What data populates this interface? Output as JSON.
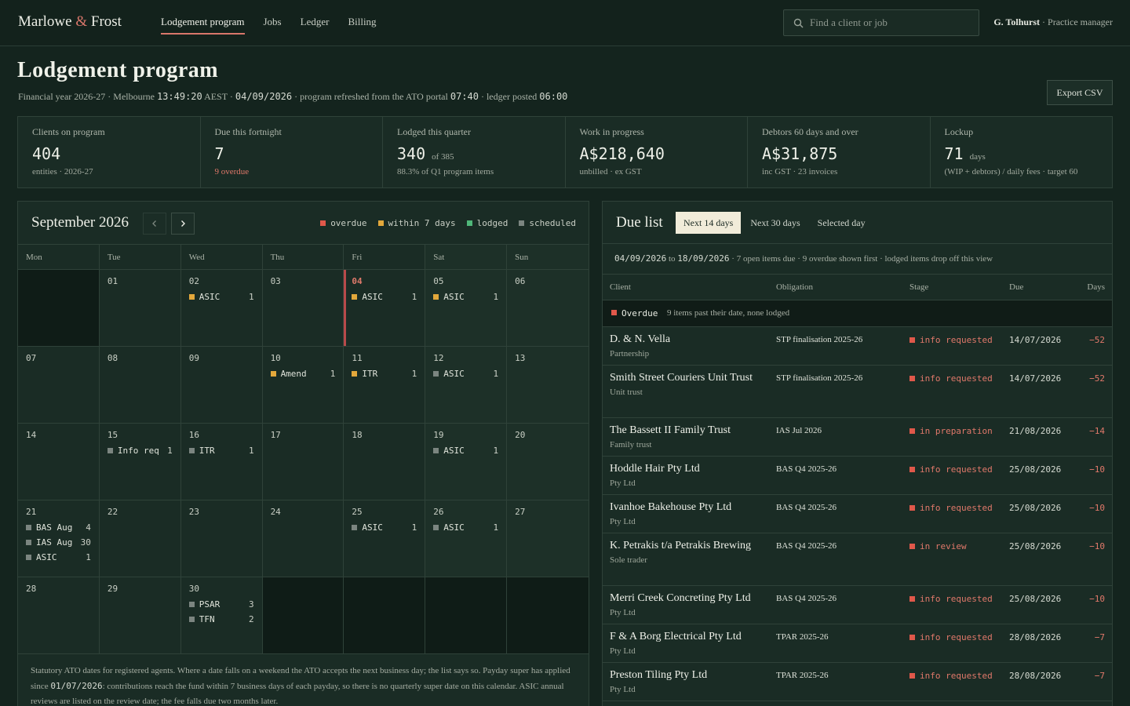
{
  "brand": {
    "name_a": "Marlowe",
    "amp": "&",
    "name_b": "Frost"
  },
  "nav": [
    {
      "label": "Lodgement program",
      "active": true
    },
    {
      "label": "Jobs"
    },
    {
      "label": "Ledger"
    },
    {
      "label": "Billing"
    }
  ],
  "search": {
    "placeholder": "Find a client or job",
    "icon": "search-icon"
  },
  "user": {
    "name": "G. Tolhurst",
    "role": "· Practice manager"
  },
  "page": {
    "title": "Lodgement program",
    "sub_a": "Financial year 2026-27 · Melbourne",
    "time": "13:49:20",
    "sub_b": "AEST ·",
    "date": "04/09/2026",
    "sub_c": "· program refreshed from the ATO portal",
    "refresh_time": "07:40",
    "sub_d": "· ledger posted",
    "ledger_time": "06:00"
  },
  "export_label": "Export CSV",
  "kpis": [
    {
      "label": "Clients on program",
      "value": "404",
      "unit": "",
      "note": "entities · 2026-27",
      "alert": false
    },
    {
      "label": "Due this fortnight",
      "value": "7",
      "unit": "",
      "note": "9 overdue",
      "alert": true
    },
    {
      "label": "Lodged this quarter",
      "value": "340",
      "unit": "of 385",
      "note": "88.3% of Q1 program items",
      "alert": false
    },
    {
      "label": "Work in progress",
      "value": "A$218,640",
      "unit": "",
      "note": "unbilled · ex GST",
      "alert": false
    },
    {
      "label": "Debtors 60 days and over",
      "value": "A$31,875",
      "unit": "",
      "note": "inc GST · 23 invoices",
      "alert": false
    },
    {
      "label": "Lockup",
      "value": "71",
      "unit": "days",
      "note": "(WIP + debtors) / daily fees · target 60",
      "alert": false
    }
  ],
  "colors": {
    "overdue": "#e0584a",
    "within": "#e3a83b",
    "lodged": "#4fb779",
    "scheduled": "#7b8580"
  },
  "calendar": {
    "month": "September 2026",
    "prev_icon": "chevron-left-icon",
    "next_icon": "chevron-right-icon",
    "legend": [
      {
        "key": "overdue",
        "label": "overdue"
      },
      {
        "key": "within",
        "label": "within 7 days"
      },
      {
        "key": "lodged",
        "label": "lodged"
      },
      {
        "key": "scheduled",
        "label": "scheduled"
      }
    ],
    "dow": [
      "Mon",
      "Tue",
      "Wed",
      "Thu",
      "Fri",
      "Sat",
      "Sun"
    ],
    "weeks": [
      [
        {
          "empty": true
        },
        {
          "day": "01",
          "events": []
        },
        {
          "day": "02",
          "events": [
            {
              "label": "ASIC",
              "count": "1",
              "status": "within"
            }
          ]
        },
        {
          "day": "03",
          "events": []
        },
        {
          "day": "04",
          "today": true,
          "events": [
            {
              "label": "ASIC",
              "count": "1",
              "status": "within"
            }
          ]
        },
        {
          "day": "05",
          "events": [
            {
              "label": "ASIC",
              "count": "1",
              "status": "within"
            }
          ]
        },
        {
          "day": "06",
          "events": []
        }
      ],
      [
        {
          "day": "07",
          "events": []
        },
        {
          "day": "08",
          "events": []
        },
        {
          "day": "09",
          "events": []
        },
        {
          "day": "10",
          "events": [
            {
              "label": "Amend",
              "count": "1",
              "status": "within"
            }
          ]
        },
        {
          "day": "11",
          "events": [
            {
              "label": "ITR",
              "count": "1",
              "status": "within"
            }
          ]
        },
        {
          "day": "12",
          "events": [
            {
              "label": "ASIC",
              "count": "1",
              "status": "scheduled"
            }
          ]
        },
        {
          "day": "13",
          "events": []
        }
      ],
      [
        {
          "day": "14",
          "events": []
        },
        {
          "day": "15",
          "events": [
            {
              "label": "Info req",
              "count": "1",
              "status": "scheduled"
            }
          ]
        },
        {
          "day": "16",
          "events": [
            {
              "label": "ITR",
              "count": "1",
              "status": "scheduled"
            }
          ]
        },
        {
          "day": "17",
          "events": []
        },
        {
          "day": "18",
          "events": []
        },
        {
          "day": "19",
          "events": [
            {
              "label": "ASIC",
              "count": "1",
              "status": "scheduled"
            }
          ]
        },
        {
          "day": "20",
          "events": []
        }
      ],
      [
        {
          "day": "21",
          "events": [
            {
              "label": "BAS Aug",
              "count": "4",
              "status": "scheduled"
            },
            {
              "label": "IAS Aug",
              "count": "30",
              "status": "scheduled"
            },
            {
              "label": "ASIC",
              "count": "1",
              "status": "scheduled"
            }
          ]
        },
        {
          "day": "22",
          "events": []
        },
        {
          "day": "23",
          "events": []
        },
        {
          "day": "24",
          "events": []
        },
        {
          "day": "25",
          "events": [
            {
              "label": "ASIC",
              "count": "1",
              "status": "scheduled"
            }
          ]
        },
        {
          "day": "26",
          "events": [
            {
              "label": "ASIC",
              "count": "1",
              "status": "scheduled"
            }
          ]
        },
        {
          "day": "27",
          "events": []
        }
      ],
      [
        {
          "day": "28",
          "events": []
        },
        {
          "day": "29",
          "events": []
        },
        {
          "day": "30",
          "events": [
            {
              "label": "PSAR",
              "count": "3",
              "status": "scheduled"
            },
            {
              "label": "TFN",
              "count": "2",
              "status": "scheduled"
            }
          ]
        },
        {
          "empty": true
        },
        {
          "empty": true
        },
        {
          "empty": true
        },
        {
          "empty": true
        }
      ]
    ],
    "foot_a": "Statutory ATO dates for registered agents. Where a date falls on a weekend the ATO accepts the next business day; the list says so. Payday super has applied since",
    "foot_date": "01/07/2026",
    "foot_b": ": contributions reach the fund within 7 business days of each payday, so there is no quarterly super date on this calendar. ASIC annual reviews are listed on the review date; the fee falls due two months later."
  },
  "due": {
    "title": "Due list",
    "tabs": [
      {
        "label": "Next 14 days",
        "active": true
      },
      {
        "label": "Next 30 days"
      },
      {
        "label": "Selected day"
      }
    ],
    "range_from": "04/09/2026",
    "range_to_word": "to",
    "range_to": "18/09/2026",
    "range_note": "· 7 open items due · 9 overdue shown first · lodged items drop off this view",
    "cols": {
      "client": "Client",
      "obligation": "Obligation",
      "stage": "Stage",
      "due": "Due",
      "days": "Days"
    },
    "group": {
      "name": "Overdue",
      "note": "9 items past their date, none lodged"
    },
    "rows": [
      {
        "client": "D. & N. Vella",
        "type": "Partnership",
        "obligation": "STP finalisation 2025-26",
        "stage": "info requested",
        "due": "14/07/2026",
        "days": "−52"
      },
      {
        "client": "Smith Street Couriers Unit Trust",
        "type": "Unit trust",
        "obligation": "STP finalisation 2025-26",
        "stage": "info requested",
        "due": "14/07/2026",
        "days": "−52"
      },
      {
        "client": "The Bassett II Family Trust",
        "type": "Family trust",
        "obligation": "IAS Jul 2026",
        "stage": "in preparation",
        "due": "21/08/2026",
        "days": "−14"
      },
      {
        "client": "Hoddle Hair Pty Ltd",
        "type": "Pty Ltd",
        "obligation": "BAS Q4 2025-26",
        "stage": "info requested",
        "due": "25/08/2026",
        "days": "−10"
      },
      {
        "client": "Ivanhoe Bakehouse Pty Ltd",
        "type": "Pty Ltd",
        "obligation": "BAS Q4 2025-26",
        "stage": "info requested",
        "due": "25/08/2026",
        "days": "−10"
      },
      {
        "client": "K. Petrakis t/a Petrakis Brewing",
        "type": "Sole trader",
        "obligation": "BAS Q4 2025-26",
        "stage": "in review",
        "due": "25/08/2026",
        "days": "−10"
      },
      {
        "client": "Merri Creek Concreting Pty Ltd",
        "type": "Pty Ltd",
        "obligation": "BAS Q4 2025-26",
        "stage": "info requested",
        "due": "25/08/2026",
        "days": "−10"
      },
      {
        "client": "F & A Borg Electrical Pty Ltd",
        "type": "Pty Ltd",
        "obligation": "TPAR 2025-26",
        "stage": "info requested",
        "due": "28/08/2026",
        "days": "−7"
      },
      {
        "client": "Preston Tiling Pty Ltd",
        "type": "Pty Ltd",
        "obligation": "TPAR 2025-26",
        "stage": "info requested",
        "due": "28/08/2026",
        "days": "−7"
      }
    ]
  }
}
